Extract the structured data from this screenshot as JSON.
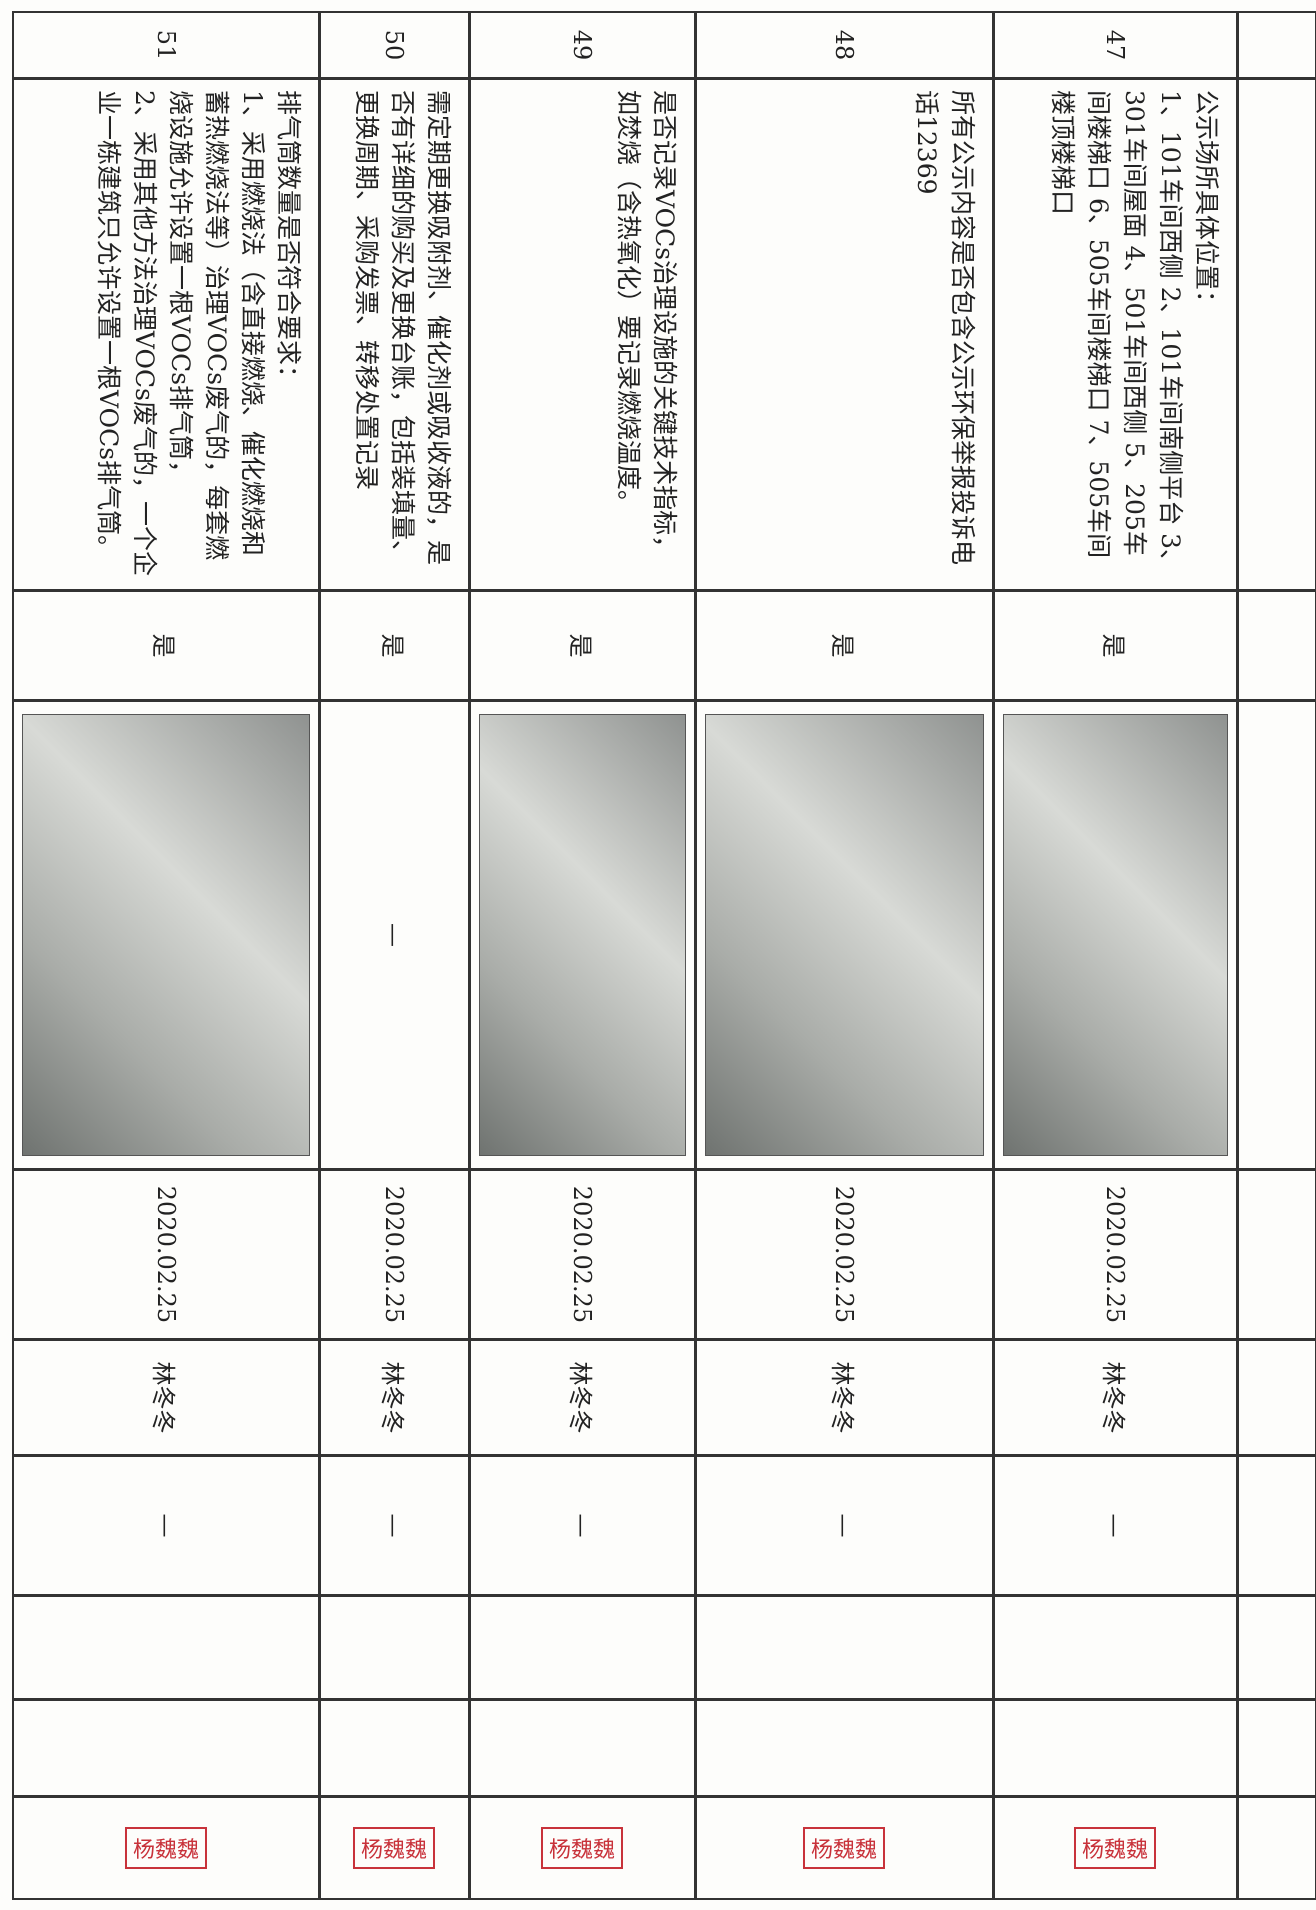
{
  "table": {
    "rows": [
      {
        "no": "47",
        "content": "公示场所具体位置：\n1、101车间西侧 2、101车间南侧平台 3、301车间屋面 4、501车间西侧 5、205车间楼梯口 6、505车间楼梯口 7、505车间楼顶楼梯口",
        "result": "是",
        "date": "2020.02.25",
        "person": "林冬冬",
        "remark": "—",
        "stamp": "杨魏魏"
      },
      {
        "no": "48",
        "content": "所有公示内容是否包含公示环保举报投诉电话12369",
        "result": "是",
        "date": "2020.02.25",
        "person": "林冬冬",
        "remark": "—",
        "stamp": "杨魏魏"
      },
      {
        "no": "49",
        "content": "是否记录VOCs治理设施的关键技术指标，如焚烧（含热氧化）要记录燃烧温度。",
        "result": "是",
        "date": "2020.02.25",
        "person": "林冬冬",
        "remark": "—",
        "stamp": "杨魏魏"
      },
      {
        "no": "50",
        "content": "需定期更换吸附剂、催化剂或吸收液的，是否有详细的购买及更换台账，包括装填量、更换周期、采购发票、转移处置记录",
        "result": "是",
        "photo_text": "—",
        "date": "2020.02.25",
        "person": "林冬冬",
        "remark": "—",
        "stamp": "杨魏魏"
      },
      {
        "no": "51",
        "content": "排气筒数量是否符合要求：\n1、采用燃烧法（含直接燃烧、催化燃烧和蓄热燃烧法等）治理VOCs废气的，每套燃烧设施允许设置一根VOCs排气筒，\n2、采用其他方法治理VOCs废气的，一个企业一栋建筑只允许设置一根VOCs排气筒。",
        "result": "是",
        "date": "2020.02.25",
        "person": "林冬冬",
        "remark": "—",
        "stamp": "杨魏魏"
      }
    ]
  }
}
